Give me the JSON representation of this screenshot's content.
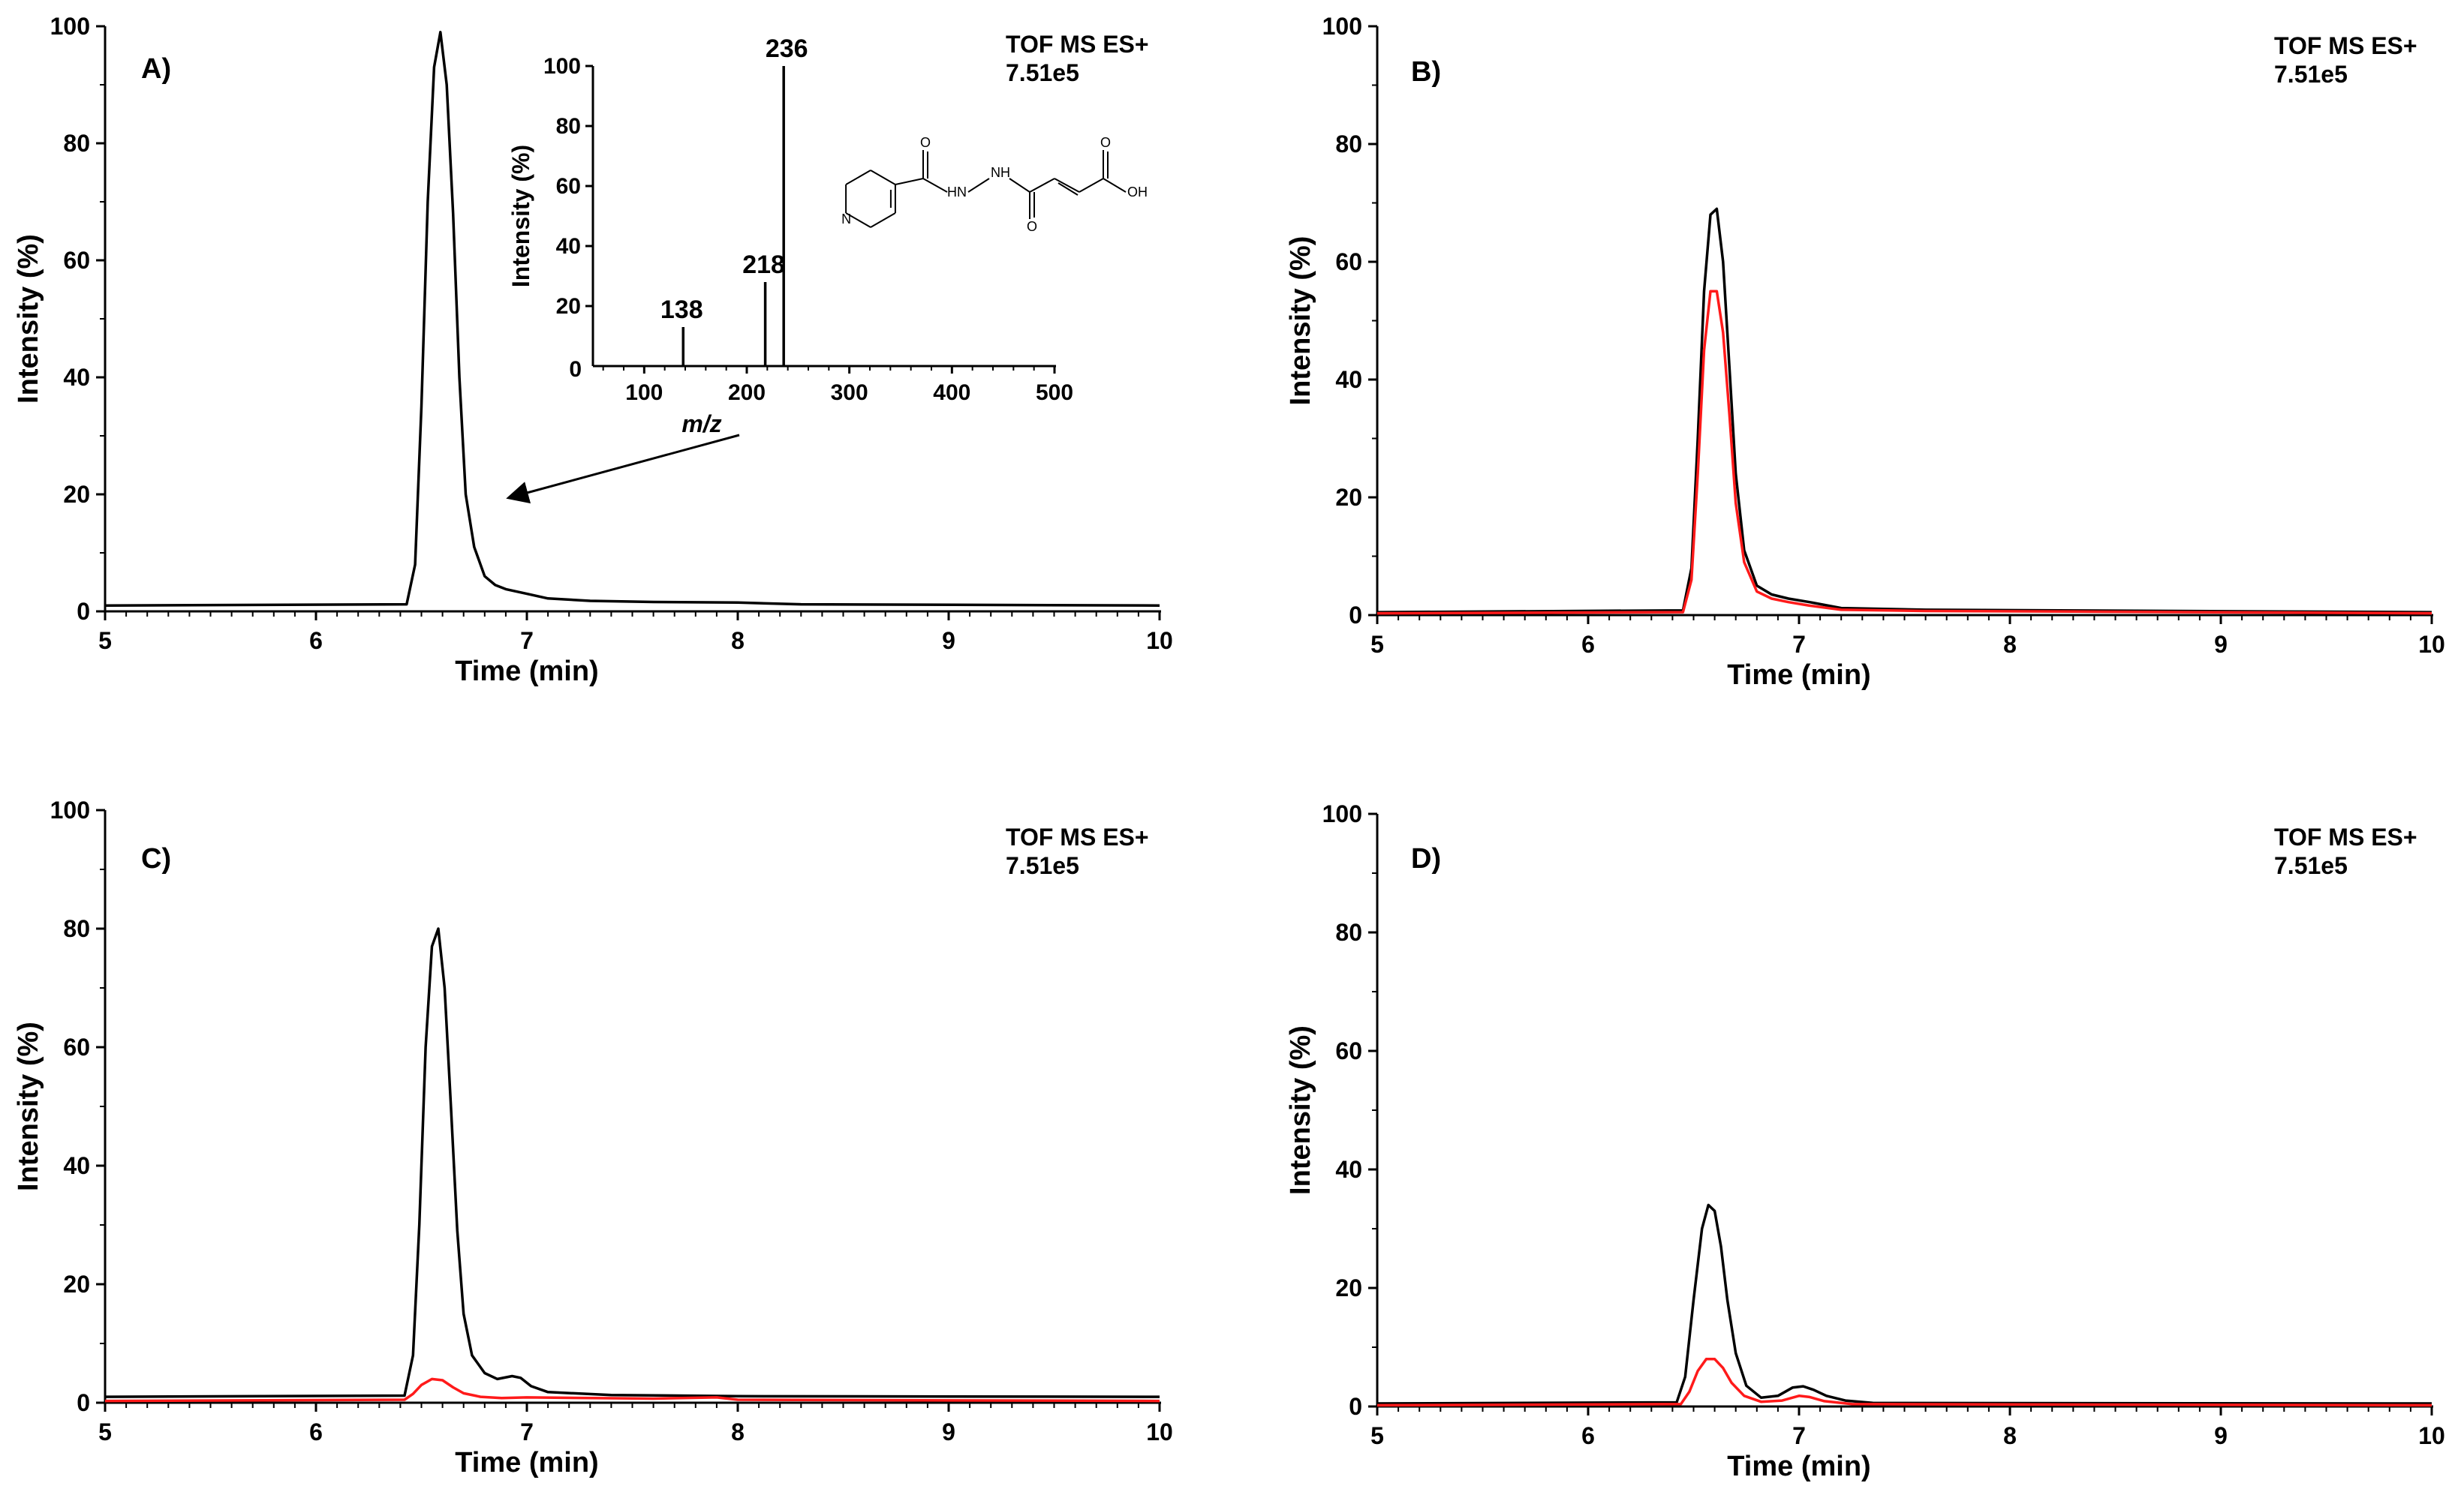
{
  "colors": {
    "black_trace": "#000000",
    "red_trace": "#ff1a1a",
    "axis": "#000000"
  },
  "chart_data": [
    {
      "type": "line",
      "panel_label": "A)",
      "header_line1": "TOF MS ES+",
      "header_line2": "7.51e5",
      "xlabel": "Time (min)",
      "ylabel": "Intensity (%)",
      "xlim": [
        5,
        10
      ],
      "ylim": [
        0,
        100
      ],
      "xticks": [
        "5",
        "6",
        "7",
        "8",
        "9",
        "10"
      ],
      "yticks": [
        "0",
        "20",
        "40",
        "60",
        "80",
        "100"
      ],
      "series": [
        {
          "name": "black",
          "color": "#000000",
          "x": [
            5.0,
            6.43,
            6.47,
            6.5,
            6.53,
            6.56,
            6.59,
            6.62,
            6.65,
            6.68,
            6.71,
            6.75,
            6.8,
            6.85,
            6.9,
            7.0,
            7.1,
            7.3,
            7.6,
            8.0,
            8.3,
            10.0
          ],
          "y": [
            1,
            1.2,
            8,
            35,
            70,
            93,
            99,
            90,
            68,
            40,
            20,
            11,
            6,
            4.5,
            3.8,
            3,
            2.2,
            1.8,
            1.6,
            1.5,
            1.2,
            1
          ]
        }
      ],
      "inset": {
        "type": "bar",
        "xlabel": "m/z",
        "ylabel": "Intensity (%)",
        "xlim": [
          50,
          500
        ],
        "ylim": [
          0,
          100
        ],
        "xticks": [
          "100",
          "200",
          "300",
          "400",
          "500"
        ],
        "yticks": [
          "0",
          "20",
          "40",
          "60",
          "80",
          "100"
        ],
        "x0_label": "0",
        "peaks": [
          {
            "mz": 138,
            "intensity": 13,
            "label": "138"
          },
          {
            "mz": 218,
            "intensity": 28,
            "label": "218"
          },
          {
            "mz": 236,
            "intensity": 100,
            "label": "236"
          }
        ],
        "structure_labels": [
          "N",
          "O",
          "H",
          "N",
          "N",
          "H",
          "O",
          "O",
          "OH"
        ]
      }
    },
    {
      "type": "line",
      "panel_label": "B)",
      "header_line1": "TOF MS ES+",
      "header_line2": "7.51e5",
      "xlabel": "Time (min)",
      "ylabel": "Intensity (%)",
      "xlim": [
        5,
        10
      ],
      "ylim": [
        0,
        100
      ],
      "xticks": [
        "5",
        "6",
        "7",
        "8",
        "9",
        "10"
      ],
      "yticks": [
        "0",
        "20",
        "40",
        "60",
        "80",
        "100"
      ],
      "series": [
        {
          "name": "black",
          "color": "#000000",
          "x": [
            5.0,
            6.45,
            6.49,
            6.52,
            6.55,
            6.58,
            6.61,
            6.64,
            6.67,
            6.7,
            6.74,
            6.8,
            6.87,
            6.95,
            7.05,
            7.2,
            7.6,
            10.0
          ],
          "y": [
            0.5,
            0.8,
            8,
            30,
            55,
            68,
            69,
            60,
            42,
            24,
            11,
            5,
            3.5,
            2.8,
            2.2,
            1.2,
            0.9,
            0.5
          ]
        },
        {
          "name": "red",
          "color": "#ff1a1a",
          "x": [
            5.0,
            6.45,
            6.49,
            6.52,
            6.55,
            6.58,
            6.61,
            6.64,
            6.67,
            6.7,
            6.74,
            6.8,
            6.87,
            6.95,
            7.05,
            7.2,
            7.6,
            8.3,
            10.0
          ],
          "y": [
            0.3,
            0.5,
            6,
            24,
            45,
            55,
            55,
            48,
            34,
            19,
            9,
            4,
            2.8,
            2.2,
            1.6,
            0.9,
            0.7,
            0.6,
            0.3
          ]
        }
      ]
    },
    {
      "type": "line",
      "panel_label": "C)",
      "header_line1": "TOF MS ES+",
      "header_line2": "7.51e5",
      "xlabel": "Time (min)",
      "ylabel": "Intensity (%)",
      "xlim": [
        5,
        10
      ],
      "ylim": [
        0,
        100
      ],
      "xticks": [
        "5",
        "6",
        "7",
        "8",
        "9",
        "10"
      ],
      "yticks": [
        "0",
        "20",
        "40",
        "60",
        "80",
        "100"
      ],
      "series": [
        {
          "name": "black",
          "color": "#000000",
          "x": [
            5.0,
            6.42,
            6.46,
            6.49,
            6.52,
            6.55,
            6.58,
            6.61,
            6.64,
            6.67,
            6.7,
            6.74,
            6.8,
            6.86,
            6.93,
            6.97,
            7.02,
            7.1,
            7.4,
            8.0,
            10.0
          ],
          "y": [
            1,
            1.2,
            8,
            30,
            60,
            77,
            80,
            70,
            50,
            29,
            15,
            8,
            5,
            4,
            4.5,
            4.2,
            2.8,
            1.8,
            1.3,
            1.1,
            1
          ]
        },
        {
          "name": "red",
          "color": "#ff1a1a",
          "x": [
            5.0,
            6.42,
            6.46,
            6.5,
            6.55,
            6.6,
            6.65,
            6.7,
            6.78,
            6.88,
            7.0,
            7.6,
            7.9,
            8.0,
            10.0
          ],
          "y": [
            0.3,
            0.5,
            1.5,
            3,
            4,
            3.8,
            2.6,
            1.6,
            1,
            0.8,
            0.9,
            0.7,
            0.9,
            0.5,
            0.3
          ]
        }
      ]
    },
    {
      "type": "line",
      "panel_label": "D)",
      "header_line1": "TOF MS ES+",
      "header_line2": "7.51e5",
      "xlabel": "Time (min)",
      "ylabel": "Intensity (%)",
      "xlim": [
        5,
        10
      ],
      "ylim": [
        0,
        100
      ],
      "xticks": [
        "5",
        "6",
        "7",
        "8",
        "9",
        "10"
      ],
      "yticks": [
        "0",
        "20",
        "40",
        "60",
        "80",
        "100"
      ],
      "series": [
        {
          "name": "black",
          "color": "#000000",
          "x": [
            5.0,
            6.42,
            6.46,
            6.5,
            6.54,
            6.57,
            6.6,
            6.63,
            6.66,
            6.7,
            6.75,
            6.82,
            6.9,
            6.97,
            7.02,
            7.07,
            7.13,
            7.22,
            7.35,
            10.0
          ],
          "y": [
            0.5,
            0.7,
            5,
            18,
            30,
            34,
            33,
            27,
            18,
            9,
            3.5,
            1.5,
            1.8,
            3.2,
            3.4,
            2.8,
            1.8,
            1,
            0.6,
            0.5
          ]
        },
        {
          "name": "red",
          "color": "#ff1a1a",
          "x": [
            5.0,
            6.44,
            6.48,
            6.52,
            6.56,
            6.6,
            6.64,
            6.68,
            6.74,
            6.82,
            6.92,
            7.0,
            7.05,
            7.12,
            7.25,
            10.0
          ],
          "y": [
            0.2,
            0.4,
            2.5,
            6,
            8,
            8,
            6.5,
            4,
            1.8,
            0.8,
            1,
            1.8,
            1.6,
            0.9,
            0.4,
            0.2
          ]
        }
      ]
    }
  ]
}
